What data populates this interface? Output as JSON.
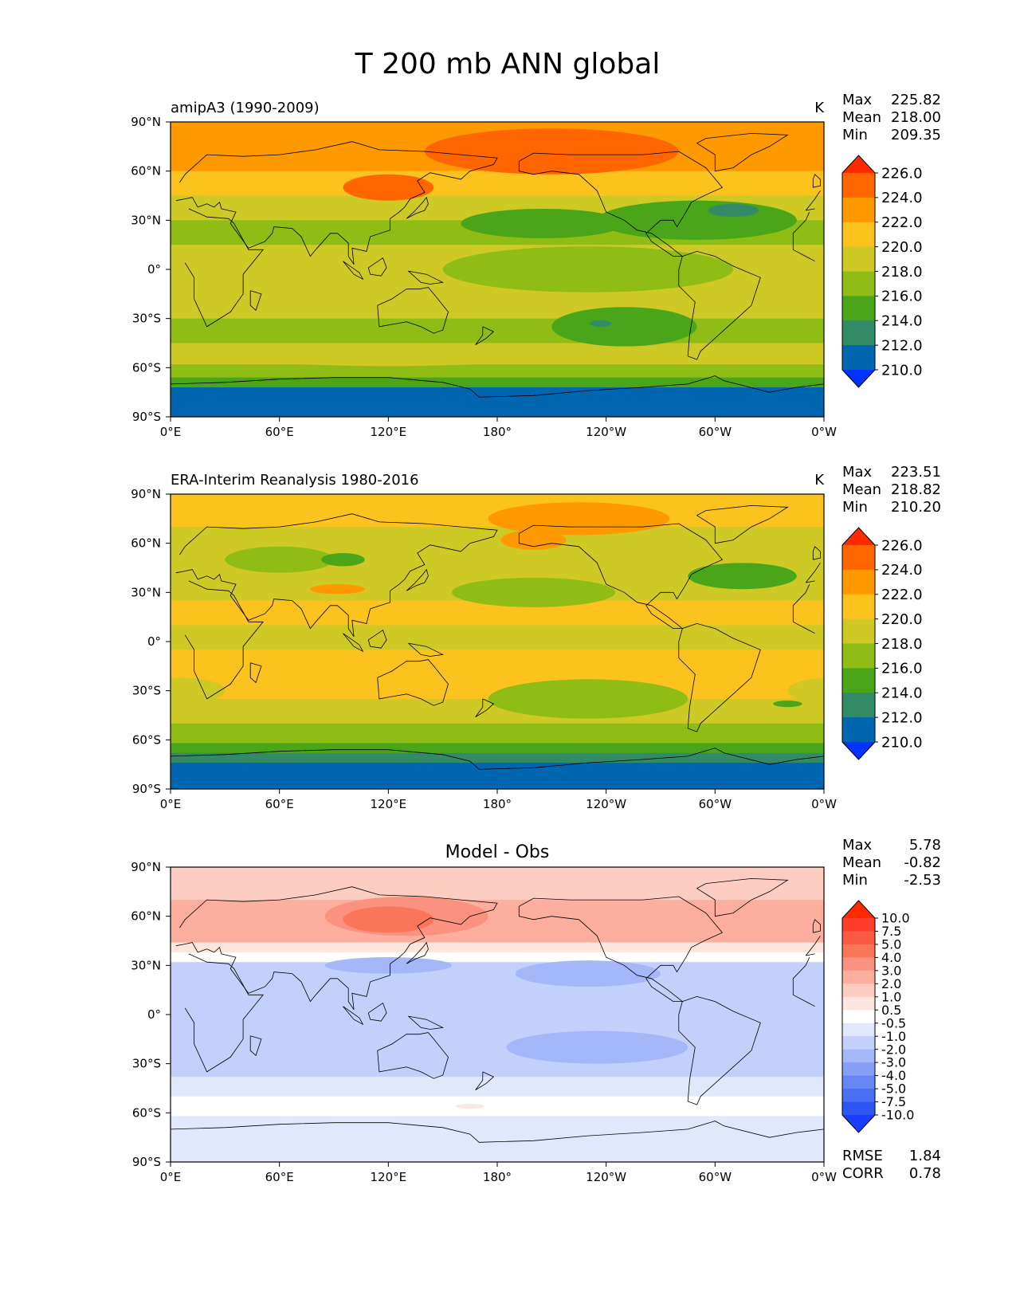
{
  "chart_data": {
    "type": "heatmap",
    "title": "T 200 mb ANN global",
    "lon_ticks": [
      "0°E",
      "60°E",
      "120°E",
      "180°",
      "120°W",
      "60°W",
      "0°W"
    ],
    "lat_ticks": [
      "90°N",
      "60°N",
      "30°N",
      "0°",
      "30°S",
      "60°S",
      "90°S"
    ],
    "panels": [
      {
        "id": "test",
        "left_title": "amipA3 (1990-2009)",
        "center_title": "",
        "units": "K",
        "stats": [
          {
            "label": "Max",
            "value": "225.82"
          },
          {
            "label": "Mean",
            "value": "218.00"
          },
          {
            "label": "Min",
            "value": "209.35"
          }
        ],
        "levels": [
          "226.0",
          "224.0",
          "222.0",
          "220.0",
          "218.0",
          "216.0",
          "214.0",
          "212.0",
          "210.0"
        ],
        "colors": [
          "#ff2a00",
          "#ff6600",
          "#ff9900",
          "#fcc21e",
          "#cec925",
          "#8fbc15",
          "#4aa618",
          "#338a66",
          "#0066b0",
          "#0033ff"
        ],
        "lat_band_levels": [
          {
            "lat": 90,
            "color_index": 2
          },
          {
            "lat": 75,
            "color_index": 2
          },
          {
            "lat": 60,
            "color_index": 3
          },
          {
            "lat": 45,
            "color_index": 4
          },
          {
            "lat": 30,
            "color_index": 5
          },
          {
            "lat": 15,
            "color_index": 4
          },
          {
            "lat": 0,
            "color_index": 4
          },
          {
            "lat": -15,
            "color_index": 4
          },
          {
            "lat": -30,
            "color_index": 5
          },
          {
            "lat": -45,
            "color_index": 4
          },
          {
            "lat": -58,
            "color_index": 5
          },
          {
            "lat": -66,
            "color_index": 6
          },
          {
            "lat": -72,
            "color_index": 8
          },
          {
            "lat": -90,
            "color_index": 9
          }
        ],
        "features": [
          {
            "lon": 210,
            "lat": 72,
            "rx": 70,
            "ry": 14,
            "color_index": 1
          },
          {
            "lon": 120,
            "lat": 50,
            "rx": 25,
            "ry": 8,
            "color_index": 1
          },
          {
            "lon": 205,
            "lat": 28,
            "rx": 45,
            "ry": 9,
            "color_index": 6
          },
          {
            "lon": 290,
            "lat": 30,
            "rx": 55,
            "ry": 12,
            "color_index": 6
          },
          {
            "lon": 310,
            "lat": 36,
            "rx": 14,
            "ry": 4,
            "color_index": 7
          },
          {
            "lon": 250,
            "lat": -35,
            "rx": 40,
            "ry": 12,
            "color_index": 6
          },
          {
            "lon": 237,
            "lat": -33,
            "rx": 6,
            "ry": 2,
            "color_index": 7
          },
          {
            "lon": 120,
            "lat": -54,
            "rx": 75,
            "ry": 5,
            "color_index": 4
          },
          {
            "lon": 230,
            "lat": 0,
            "rx": 80,
            "ry": 14,
            "color_index": 5
          }
        ]
      },
      {
        "id": "reference",
        "left_title": "ERA-Interim Reanalysis 1980-2016",
        "center_title": "",
        "units": "K",
        "stats": [
          {
            "label": "Max",
            "value": "223.51"
          },
          {
            "label": "Mean",
            "value": "218.82"
          },
          {
            "label": "Min",
            "value": "210.20"
          }
        ],
        "levels": [
          "226.0",
          "224.0",
          "222.0",
          "220.0",
          "218.0",
          "216.0",
          "214.0",
          "212.0",
          "210.0"
        ],
        "colors": [
          "#ff2a00",
          "#ff6600",
          "#ff9900",
          "#fcc21e",
          "#cec925",
          "#8fbc15",
          "#4aa618",
          "#338a66",
          "#0066b0",
          "#0033ff"
        ],
        "lat_band_levels": [
          {
            "lat": 90,
            "color_index": 3
          },
          {
            "lat": 70,
            "color_index": 4
          },
          {
            "lat": 55,
            "color_index": 4
          },
          {
            "lat": 40,
            "color_index": 4
          },
          {
            "lat": 25,
            "color_index": 3
          },
          {
            "lat": 10,
            "color_index": 4
          },
          {
            "lat": -5,
            "color_index": 3
          },
          {
            "lat": -20,
            "color_index": 3
          },
          {
            "lat": -35,
            "color_index": 4
          },
          {
            "lat": -50,
            "color_index": 5
          },
          {
            "lat": -62,
            "color_index": 6
          },
          {
            "lat": -68,
            "color_index": 7
          },
          {
            "lat": -74,
            "color_index": 8
          },
          {
            "lat": -90,
            "color_index": 8
          }
        ],
        "features": [
          {
            "lon": 225,
            "lat": 75,
            "rx": 50,
            "ry": 10,
            "color_index": 2
          },
          {
            "lon": 200,
            "lat": 62,
            "rx": 18,
            "ry": 6,
            "color_index": 2
          },
          {
            "lon": 60,
            "lat": 50,
            "rx": 30,
            "ry": 8,
            "color_index": 5
          },
          {
            "lon": 95,
            "lat": 50,
            "rx": 12,
            "ry": 4,
            "color_index": 6
          },
          {
            "lon": 200,
            "lat": 30,
            "rx": 45,
            "ry": 9,
            "color_index": 5
          },
          {
            "lon": 315,
            "lat": 40,
            "rx": 30,
            "ry": 8,
            "color_index": 6
          },
          {
            "lon": 92,
            "lat": 32,
            "rx": 15,
            "ry": 3,
            "color_index": 2
          },
          {
            "lon": 230,
            "lat": -35,
            "rx": 55,
            "ry": 12,
            "color_index": 5
          },
          {
            "lon": 5,
            "lat": -30,
            "rx": 25,
            "ry": 8,
            "color_index": 4
          },
          {
            "lon": 340,
            "lat": -38,
            "rx": 8,
            "ry": 2,
            "color_index": 6
          }
        ]
      },
      {
        "id": "diff",
        "left_title": "",
        "center_title": "Model - Obs",
        "units": "",
        "stats": [
          {
            "label": "Max",
            "value": "5.78"
          },
          {
            "label": "Mean",
            "value": "-0.82"
          },
          {
            "label": "Min",
            "value": "-2.53"
          }
        ],
        "levels": [
          "10.0",
          "7.5",
          "5.0",
          "4.0",
          "3.0",
          "2.0",
          "1.0",
          "0.5",
          "-0.5",
          "-1.0",
          "-2.0",
          "-3.0",
          "-4.0",
          "-5.0",
          "-7.5",
          "-10.0"
        ],
        "colors": [
          "#ff2a00",
          "#ff3d2a",
          "#fa5a43",
          "#fb7558",
          "#fb9280",
          "#fdae9f",
          "#fdcdc2",
          "#fee6e0",
          "#ffffff",
          "#e1e8fc",
          "#c2d0fb",
          "#a4b8f9",
          "#859ff7",
          "#6686f5",
          "#4a6ef4",
          "#2e56f4",
          "#1a3dff"
        ],
        "lat_band_levels": [
          {
            "lat": 90,
            "color_index": 6
          },
          {
            "lat": 70,
            "color_index": 5
          },
          {
            "lat": 55,
            "color_index": 5
          },
          {
            "lat": 44,
            "color_index": 7
          },
          {
            "lat": 38,
            "color_index": 8
          },
          {
            "lat": 32,
            "color_index": 10
          },
          {
            "lat": 15,
            "color_index": 10
          },
          {
            "lat": 0,
            "color_index": 10
          },
          {
            "lat": -25,
            "color_index": 10
          },
          {
            "lat": -38,
            "color_index": 9
          },
          {
            "lat": -50,
            "color_index": 8
          },
          {
            "lat": -62,
            "color_index": 9
          },
          {
            "lat": -75,
            "color_index": 9
          },
          {
            "lat": -90,
            "color_index": 10
          }
        ],
        "features": [
          {
            "lon": 130,
            "lat": 60,
            "rx": 45,
            "ry": 12,
            "color_index": 4
          },
          {
            "lon": 120,
            "lat": 58,
            "rx": 25,
            "ry": 8,
            "color_index": 3
          },
          {
            "lon": 220,
            "lat": 78,
            "rx": 70,
            "ry": 8,
            "color_index": 6
          },
          {
            "lon": 230,
            "lat": 25,
            "rx": 40,
            "ry": 8,
            "color_index": 11
          },
          {
            "lon": 120,
            "lat": 30,
            "rx": 35,
            "ry": 5,
            "color_index": 11
          },
          {
            "lon": 235,
            "lat": -20,
            "rx": 50,
            "ry": 10,
            "color_index": 11
          },
          {
            "lon": 165,
            "lat": -56,
            "rx": 8,
            "ry": 1.5,
            "color_index": 7
          },
          {
            "lon": 40,
            "lat": -78,
            "rx": 30,
            "ry": 5,
            "color_index": 9
          }
        ],
        "rmse": {
          "label": "RMSE",
          "value": "1.84"
        },
        "corr": {
          "label": "CORR",
          "value": "0.78"
        }
      }
    ]
  }
}
